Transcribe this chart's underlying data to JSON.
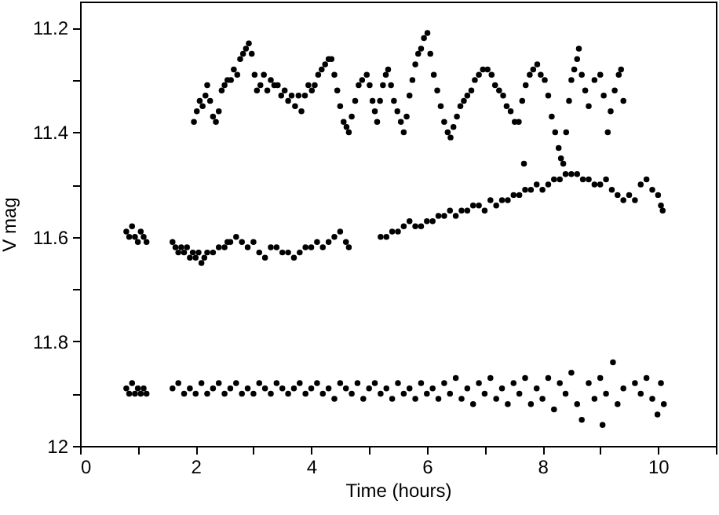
{
  "chart_data": {
    "type": "scatter",
    "xlabel": "Time (hours)",
    "ylabel": "V mag",
    "marker": "circle",
    "grid": false,
    "xlim": [
      0,
      11
    ],
    "ylim": [
      12,
      11.15
    ],
    "xticks": [
      0,
      {
        "value": 1,
        "label": null
      },
      2,
      {
        "value": 3,
        "label": null
      },
      4,
      {
        "value": 5,
        "label": null
      },
      6,
      {
        "value": 7,
        "label": null
      },
      8,
      {
        "value": 9,
        "label": null
      },
      10,
      {
        "value": 11,
        "label": null
      }
    ],
    "yticks": [
      {
        "value": 11.2,
        "label": "11.2"
      },
      {
        "value": 11.3,
        "label": null
      },
      {
        "value": 11.4,
        "label": "11.4"
      },
      {
        "value": 11.5,
        "label": null
      },
      {
        "value": 11.6,
        "label": "11.6"
      },
      {
        "value": 11.7,
        "label": null
      },
      {
        "value": 11.8,
        "label": "11.8"
      },
      {
        "value": 11.9,
        "label": null
      },
      12
    ],
    "series": [
      {
        "color": "#000000",
        "x": [
          1.97,
          2.02,
          2.07,
          2.12,
          2.17,
          2.2,
          2.25,
          2.3,
          2.35,
          2.4,
          2.45,
          2.5,
          2.55,
          2.61,
          2.66,
          2.72,
          2.77,
          2.82,
          2.87,
          2.92,
          2.97,
          3.02,
          3.06,
          3.12,
          3.18,
          3.24,
          3.3,
          3.36,
          3.42,
          3.48,
          3.54,
          3.6,
          3.66,
          3.72,
          3.78,
          3.83,
          3.89,
          3.95,
          4.01,
          4.06,
          4.12,
          4.18,
          4.24,
          4.3,
          4.35,
          4.4,
          4.45,
          4.5,
          4.56,
          4.61,
          4.65,
          4.7,
          4.76,
          4.82,
          4.88,
          4.96,
          5.01,
          5.06,
          5.1,
          5.14,
          5.19,
          5.24,
          5.29,
          5.33,
          5.38,
          5.43,
          5.49,
          5.55,
          5.6,
          5.65,
          5.7,
          5.75,
          5.8,
          5.85,
          5.9,
          5.95,
          6.01,
          6.06,
          6.12,
          6.18,
          6.24,
          6.3,
          6.36,
          6.41,
          6.46,
          6.52,
          6.58,
          6.64,
          6.7,
          6.77,
          6.83,
          6.9,
          6.97,
          7.05,
          7.12,
          7.18,
          7.25,
          7.32,
          7.38,
          7.45,
          7.52,
          7.59,
          7.65,
          7.71,
          7.78,
          7.84,
          7.91,
          7.97,
          8.04,
          8.1,
          8.16,
          8.22,
          8.28,
          8.32,
          8.36,
          8.41,
          8.46,
          8.5,
          8.55,
          8.6,
          8.63,
          8.68,
          8.74,
          8.8,
          8.9,
          9.0,
          9.06,
          9.13,
          9.18,
          9.25,
          9.32,
          9.36,
          9.4
        ],
        "values": [
          11.38,
          11.36,
          11.34,
          11.35,
          11.33,
          11.31,
          11.34,
          11.37,
          11.38,
          11.36,
          11.32,
          11.31,
          11.3,
          11.3,
          11.28,
          11.29,
          11.26,
          11.25,
          11.24,
          11.23,
          11.25,
          11.29,
          11.32,
          11.31,
          11.29,
          11.32,
          11.3,
          11.31,
          11.31,
          11.33,
          11.32,
          11.34,
          11.33,
          11.35,
          11.33,
          11.36,
          11.33,
          11.31,
          11.32,
          11.31,
          11.29,
          11.28,
          11.27,
          11.26,
          11.26,
          11.29,
          11.32,
          11.35,
          11.38,
          11.39,
          11.4,
          11.37,
          11.34,
          11.31,
          11.3,
          11.29,
          11.31,
          11.34,
          11.36,
          11.38,
          11.34,
          11.31,
          11.29,
          11.28,
          11.31,
          11.34,
          11.36,
          11.38,
          11.4,
          11.37,
          11.33,
          11.3,
          11.27,
          11.25,
          11.24,
          11.22,
          11.21,
          11.25,
          11.29,
          11.32,
          11.35,
          11.38,
          11.4,
          11.41,
          11.39,
          11.37,
          11.35,
          11.34,
          11.33,
          11.32,
          11.3,
          11.29,
          11.28,
          11.28,
          11.29,
          11.31,
          11.32,
          11.33,
          11.35,
          11.36,
          11.38,
          11.38,
          11.34,
          11.31,
          11.29,
          11.28,
          11.27,
          11.29,
          11.3,
          11.33,
          11.37,
          11.4,
          11.43,
          11.45,
          11.46,
          11.4,
          11.34,
          11.3,
          11.28,
          11.26,
          11.24,
          11.29,
          11.32,
          11.35,
          11.3,
          11.29,
          11.33,
          11.4,
          11.36,
          11.32,
          11.29,
          11.28,
          11.34
        ]
      },
      {
        "color": "#000000",
        "x": [
          0.8,
          0.85,
          0.9,
          0.95,
          1.0,
          1.05,
          1.1,
          1.15,
          1.6,
          1.65,
          1.7,
          1.75,
          1.8,
          1.85,
          1.9,
          1.95,
          2.0,
          2.05,
          2.1,
          2.15,
          2.2,
          2.3,
          2.4,
          2.5,
          2.55,
          2.6,
          2.7,
          2.8,
          2.9,
          3.0,
          3.1,
          3.2,
          3.3,
          3.4,
          3.5,
          3.6,
          3.7,
          3.8,
          3.9,
          4.0,
          4.1,
          4.2,
          4.3,
          4.4,
          4.5,
          4.6,
          4.65,
          5.2,
          5.3,
          5.4,
          5.5,
          5.6,
          5.7,
          5.8,
          5.9,
          6.0,
          6.1,
          6.2,
          6.3,
          6.4,
          6.5,
          6.6,
          6.7,
          6.8,
          6.9,
          7.0,
          7.1,
          7.2,
          7.3,
          7.4,
          7.5,
          7.6,
          7.68,
          7.7,
          7.8,
          7.9,
          8.0,
          8.1,
          8.2,
          8.3,
          8.4,
          8.5,
          8.6,
          8.7,
          8.8,
          8.9,
          9.0,
          9.1,
          9.2,
          9.3,
          9.4,
          9.5,
          9.6,
          9.7,
          9.8,
          9.9,
          10.0,
          10.05,
          10.08
        ],
        "values": [
          11.59,
          11.6,
          11.58,
          11.6,
          11.61,
          11.59,
          11.6,
          11.61,
          11.61,
          11.62,
          11.63,
          11.62,
          11.63,
          11.62,
          11.64,
          11.63,
          11.64,
          11.63,
          11.65,
          11.64,
          11.63,
          11.63,
          11.62,
          11.62,
          11.61,
          11.61,
          11.6,
          11.61,
          11.62,
          11.61,
          11.63,
          11.64,
          11.62,
          11.62,
          11.63,
          11.63,
          11.64,
          11.63,
          11.62,
          11.62,
          11.61,
          11.62,
          11.61,
          11.6,
          11.59,
          11.61,
          11.62,
          11.6,
          11.6,
          11.59,
          11.59,
          11.58,
          11.57,
          11.58,
          11.58,
          11.57,
          11.57,
          11.56,
          11.56,
          11.55,
          11.56,
          11.55,
          11.55,
          11.54,
          11.54,
          11.55,
          11.53,
          11.54,
          11.53,
          11.53,
          11.52,
          11.52,
          11.46,
          11.51,
          11.51,
          11.5,
          11.51,
          11.5,
          11.49,
          11.49,
          11.48,
          11.48,
          11.48,
          11.49,
          11.49,
          11.5,
          11.5,
          11.49,
          11.51,
          11.52,
          11.53,
          11.52,
          11.53,
          11.5,
          11.49,
          11.51,
          11.52,
          11.54,
          11.55
        ]
      },
      {
        "color": "#000000",
        "x": [
          0.8,
          0.85,
          0.9,
          0.95,
          1.0,
          1.05,
          1.1,
          1.15,
          1.6,
          1.7,
          1.8,
          1.9,
          2.0,
          2.1,
          2.2,
          2.3,
          2.4,
          2.5,
          2.6,
          2.7,
          2.8,
          2.9,
          3.0,
          3.1,
          3.2,
          3.3,
          3.4,
          3.5,
          3.6,
          3.7,
          3.8,
          3.9,
          4.0,
          4.1,
          4.2,
          4.3,
          4.4,
          4.5,
          4.6,
          4.7,
          4.8,
          4.9,
          5.0,
          5.1,
          5.2,
          5.3,
          5.4,
          5.5,
          5.6,
          5.7,
          5.8,
          5.9,
          6.0,
          6.1,
          6.2,
          6.3,
          6.4,
          6.5,
          6.6,
          6.7,
          6.8,
          6.9,
          7.0,
          7.1,
          7.2,
          7.3,
          7.4,
          7.5,
          7.6,
          7.7,
          7.8,
          7.9,
          8.0,
          8.1,
          8.2,
          8.3,
          8.4,
          8.5,
          8.6,
          8.68,
          8.8,
          8.9,
          9.0,
          9.04,
          9.1,
          9.22,
          9.3,
          9.4,
          9.6,
          9.7,
          9.8,
          9.9,
          9.99,
          10.05,
          10.1
        ],
        "values": [
          11.89,
          11.9,
          11.88,
          11.9,
          11.89,
          11.9,
          11.89,
          11.9,
          11.89,
          11.88,
          11.9,
          11.89,
          11.9,
          11.88,
          11.9,
          11.89,
          11.88,
          11.9,
          11.89,
          11.88,
          11.9,
          11.89,
          11.9,
          11.88,
          11.89,
          11.9,
          11.88,
          11.89,
          11.9,
          11.89,
          11.88,
          11.9,
          11.89,
          11.88,
          11.9,
          11.89,
          11.91,
          11.88,
          11.89,
          11.9,
          11.88,
          11.91,
          11.89,
          11.88,
          11.9,
          11.89,
          11.91,
          11.88,
          11.9,
          11.89,
          11.91,
          11.88,
          11.9,
          11.89,
          11.91,
          11.88,
          11.9,
          11.87,
          11.91,
          11.89,
          11.92,
          11.88,
          11.9,
          11.87,
          11.91,
          11.89,
          11.92,
          11.88,
          11.9,
          11.87,
          11.92,
          11.89,
          11.91,
          11.87,
          11.93,
          11.88,
          11.9,
          11.86,
          11.92,
          11.95,
          11.88,
          11.91,
          11.87,
          11.96,
          11.9,
          11.84,
          11.92,
          11.89,
          11.88,
          11.9,
          11.87,
          11.91,
          11.94,
          11.88,
          11.92
        ]
      }
    ]
  }
}
